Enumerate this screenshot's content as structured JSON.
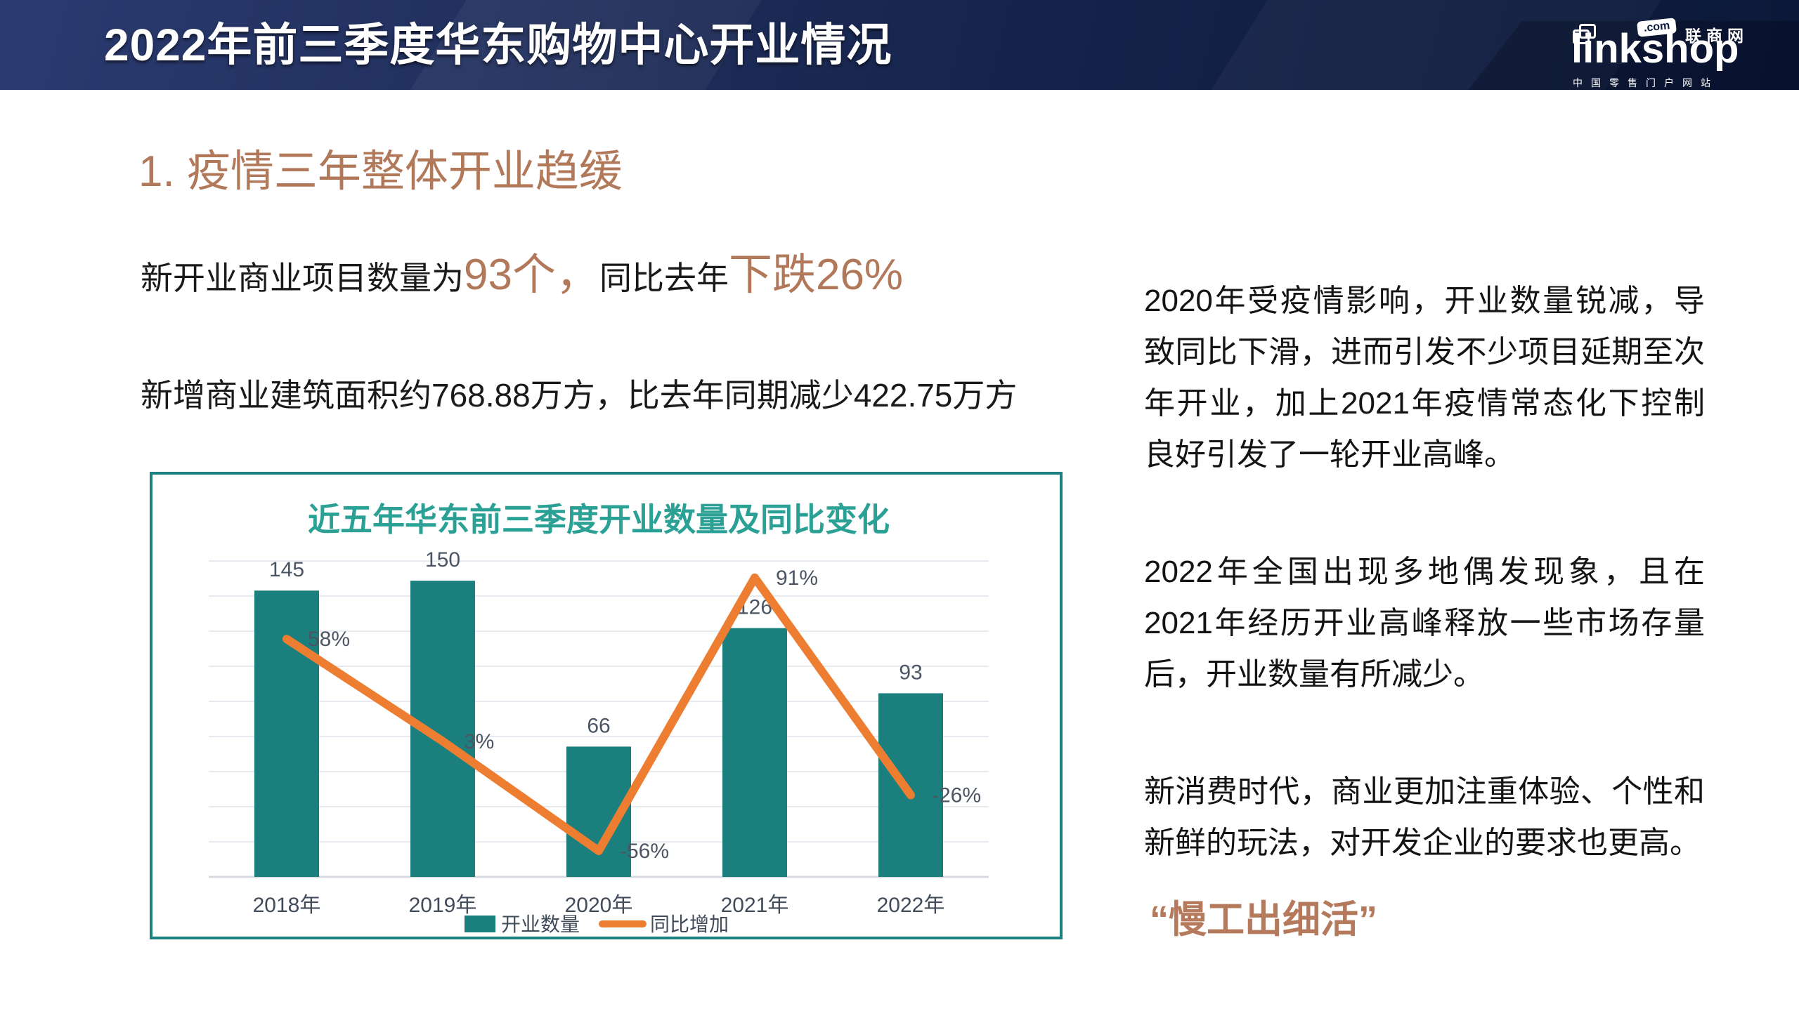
{
  "header": {
    "title": "2022年前三季度华东购物中心开业情况",
    "logo": {
      "wordmark": "linkshop",
      "com_badge": ".com",
      "cn_name": "联商网",
      "tagline": "中国零售门户网站"
    }
  },
  "section": {
    "heading": "1. 疫情三年整体开业趋缓"
  },
  "highlights": {
    "line1": {
      "prefix": "新开业商业项目数量为",
      "value1": "93个，",
      "middle": "同比去年",
      "value2": "下跌26%"
    },
    "line2": "新增商业建筑面积约768.88万方，比去年同期减少422.75万方"
  },
  "right_column": {
    "paragraphs": [
      "2020年受疫情影响，开业数量锐减，导致同比下滑，进而引发不少项目延期至次年开业，加上2021年疫情常态化下控制良好引发了一轮开业高峰。",
      "2022年全国出现多地偶发现象，且在2021年经历开业高峰释放一些市场存量后，开业数量有所减少。",
      "新消费时代，商业更加注重体验、个性和新鲜的玩法，对开发企业的要求也更高。"
    ],
    "quote": "“慢工出细活”"
  },
  "chart_data": {
    "type": "bar",
    "combo": "bar+line",
    "title": "近五年华东前三季度开业数量及同比变化",
    "categories": [
      "2018年",
      "2019年",
      "2020年",
      "2021年",
      "2022年"
    ],
    "series": [
      {
        "name": "开业数量",
        "kind": "bar",
        "values": [
          145,
          150,
          66,
          126,
          93
        ],
        "color": "#1b807d"
      },
      {
        "name": "同比增加",
        "kind": "line",
        "values": [
          58,
          3,
          -56,
          91,
          -26
        ],
        "labels": [
          "58%",
          "3%",
          "-56%",
          "91%",
          "-26%"
        ],
        "color": "#ed7d31"
      }
    ],
    "bar_axis_range": [
      0,
      160
    ],
    "line_axis_range": [
      -70,
      100
    ],
    "grid": true,
    "legend_position": "bottom",
    "title_color": "#2ba094",
    "label_color": "#4b5563",
    "axis_label_color": "#414c5b"
  },
  "colors": {
    "header_navy": "#142249",
    "accent_brown": "#b1785a",
    "chart_border_teal": "#1e8181",
    "bar_teal": "#1b807d",
    "line_orange": "#ed7d31"
  }
}
